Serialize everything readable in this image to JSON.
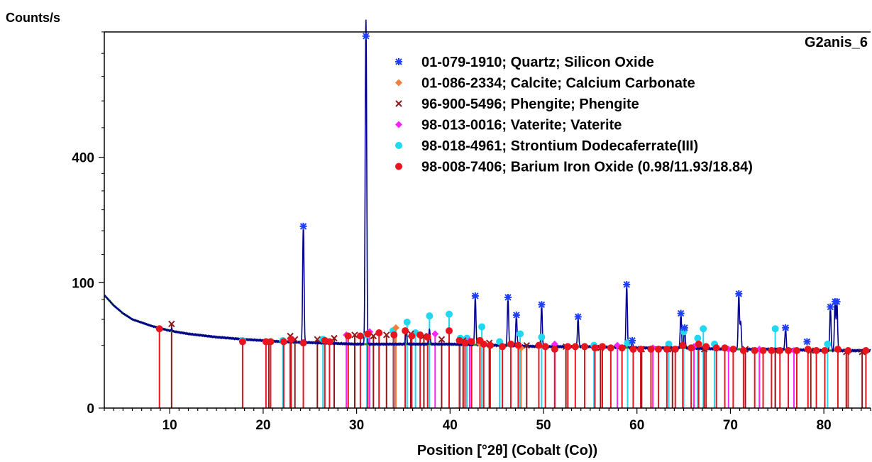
{
  "chart_data": {
    "type": "line",
    "title": "",
    "sample_label": "G2anis_6",
    "ylabel": "Counts/s",
    "xlabel": "Position [°2θ] (Cobalt (Co))",
    "xlim": [
      3,
      85
    ],
    "y_scale": "sqrt",
    "ylim": [
      0,
      1000
    ],
    "y_ticks": [
      0,
      100,
      400
    ],
    "x_ticks": [
      10,
      20,
      30,
      40,
      50,
      60,
      70,
      80
    ],
    "grid": false,
    "legend_position": "top-right",
    "colors": {
      "pattern": "#00008b",
      "background_fit": "#2a8a2a",
      "Quartz": "#1f3fff",
      "Calcite": "#f07f3c",
      "Phengite": "#8b1a1a",
      "Vaterite": "#ff22ff",
      "Strontium": "#22d8f0",
      "Barium": "#e8141e"
    },
    "legend": [
      {
        "label": "01-079-1910; Quartz; Silicon Oxide",
        "marker": "asterisk",
        "color": "#1f3fff"
      },
      {
        "label": "01-086-2334; Calcite; Calcium Carbonate",
        "marker": "diamond",
        "color": "#f07f3c"
      },
      {
        "label": "96-900-5496; Phengite; Phengite",
        "marker": "cross",
        "color": "#8b1a1a"
      },
      {
        "label": "98-013-0016; Vaterite; Vaterite",
        "marker": "diamond",
        "color": "#ff22ff"
      },
      {
        "label": "98-018-4961; Strontium Dodecaferrate(III)",
        "marker": "circle",
        "color": "#22d8f0"
      },
      {
        "label": "98-008-7406; Barium Iron Oxide (0.98/11.93/18.84)",
        "marker": "circle",
        "color": "#e8141e"
      }
    ],
    "background": {
      "x": [
        3,
        4,
        5,
        6,
        8,
        10,
        12,
        15,
        18,
        22,
        26,
        30,
        35,
        40,
        45,
        50,
        55,
        60,
        65,
        70,
        75,
        80,
        85
      ],
      "y": [
        81,
        67,
        57,
        50,
        43,
        38,
        35,
        32,
        30,
        28,
        27,
        26,
        26,
        26,
        25,
        24,
        24,
        23,
        23,
        22,
        22,
        21,
        21
      ]
    },
    "peaks": [
      {
        "x": 10.2,
        "y": 40
      },
      {
        "x": 24.3,
        "y": 210
      },
      {
        "x": 31.0,
        "y": 960
      },
      {
        "x": 35.3,
        "y": 40
      },
      {
        "x": 37.8,
        "y": 40
      },
      {
        "x": 42.7,
        "y": 80
      },
      {
        "x": 46.2,
        "y": 78
      },
      {
        "x": 47.1,
        "y": 55
      },
      {
        "x": 49.8,
        "y": 68
      },
      {
        "x": 53.7,
        "y": 53
      },
      {
        "x": 58.9,
        "y": 97
      },
      {
        "x": 59.5,
        "y": 29
      },
      {
        "x": 64.7,
        "y": 57
      },
      {
        "x": 65.1,
        "y": 41
      },
      {
        "x": 70.9,
        "y": 83
      },
      {
        "x": 71.1,
        "y": 48
      },
      {
        "x": 75.9,
        "y": 41
      },
      {
        "x": 80.7,
        "y": 65
      },
      {
        "x": 81.2,
        "y": 72
      },
      {
        "x": 81.4,
        "y": 72
      }
    ],
    "reference_series": [
      {
        "name": "Quartz",
        "marker": "asterisk",
        "x": [
          24.3,
          31.0,
          42.7,
          46.2,
          47.1,
          49.8,
          53.7,
          58.9,
          59.5,
          64.7,
          65.1,
          70.9,
          75.9,
          78.2,
          80.7,
          81.2,
          81.4
        ],
        "y": [
          210,
          880,
          80,
          78,
          55,
          68,
          53,
          97,
          29,
          57,
          41,
          83,
          41,
          28,
          65,
          72,
          72
        ]
      },
      {
        "name": "Calcite",
        "marker": "diamond",
        "x": [
          34.2,
          43.2,
          47.6
        ],
        "y": [
          41,
          26,
          23
        ]
      },
      {
        "name": "Phengite",
        "marker": "cross",
        "x": [
          10.2,
          20.6,
          22.9,
          23.4,
          25.8,
          27.6,
          29.8,
          31.8,
          33.2,
          35.8,
          37.2,
          39.1,
          41.4,
          44.2,
          48.2,
          52.4,
          56.1,
          60.5,
          63.8,
          67.2,
          71.6,
          74.8,
          78.6,
          82.4,
          84.1
        ],
        "y": [
          45,
          28,
          33,
          30,
          30,
          31,
          34,
          33,
          34,
          35,
          33,
          30,
          29,
          27,
          25,
          24,
          23,
          22,
          22,
          22,
          22,
          21,
          21,
          20,
          20
        ]
      },
      {
        "name": "Vaterite",
        "marker": "diamond",
        "x": [
          28.9,
          31.4,
          38.4,
          42.1,
          51.2,
          57.9,
          61.7,
          66.1,
          69.8,
          73.1,
          76.8
        ],
        "y": [
          34,
          37,
          35,
          29,
          26,
          25,
          23,
          24,
          22,
          22,
          21
        ]
      },
      {
        "name": "Strontium",
        "marker": "circle",
        "x": [
          17.8,
          22.1,
          26.4,
          31.1,
          33.9,
          35.4,
          36.3,
          37.8,
          39.9,
          41.1,
          41.8,
          43.4,
          45.3,
          47.5,
          49.8,
          55.4,
          59.0,
          63.4,
          65.0,
          66.5,
          67.1,
          68.3,
          74.8,
          80.4
        ],
        "y": [
          29,
          29,
          30,
          34,
          38,
          47,
          36,
          54,
          56,
          31,
          31,
          42,
          28,
          35,
          32,
          25,
          27,
          26,
          37,
          31,
          40,
          26,
          40,
          26
        ]
      },
      {
        "name": "Barium",
        "marker": "circle",
        "x": [
          8.9,
          17.8,
          20.3,
          20.8,
          22.2,
          23.0,
          24.3,
          26.6,
          27.1,
          29.1,
          30.4,
          31.2,
          32.4,
          34.0,
          35.2,
          35.9,
          36.8,
          37.6,
          39.9,
          41.0,
          41.6,
          42.3,
          43.2,
          43.6,
          44.3,
          45.6,
          46.5,
          47.3,
          49.5,
          50.2,
          51.2,
          52.6,
          53.4,
          54.4,
          55.5,
          56.3,
          57.2,
          58.4,
          59.6,
          60.4,
          61.5,
          62.3,
          63.2,
          64.1,
          64.9,
          65.8,
          66.6,
          67.4,
          68.5,
          69.4,
          70.3,
          71.4,
          72.6,
          73.5,
          74.4,
          75.3,
          76.2,
          77.1,
          78.3,
          79.2,
          80.1,
          81.5,
          82.6,
          84.5
        ],
        "y": [
          40,
          28,
          28,
          28,
          28,
          30,
          27,
          29,
          28,
          33,
          33,
          35,
          36,
          34,
          38,
          33,
          34,
          32,
          38,
          29,
          27,
          28,
          29,
          26,
          25,
          24,
          26,
          25,
          25,
          24,
          22,
          24,
          24,
          24,
          23,
          24,
          23,
          23,
          22,
          22,
          22,
          22,
          22,
          22,
          25,
          23,
          26,
          24,
          23,
          23,
          22,
          21,
          21,
          21,
          21,
          21,
          21,
          21,
          22,
          21,
          21,
          22,
          21,
          21
        ]
      }
    ]
  }
}
